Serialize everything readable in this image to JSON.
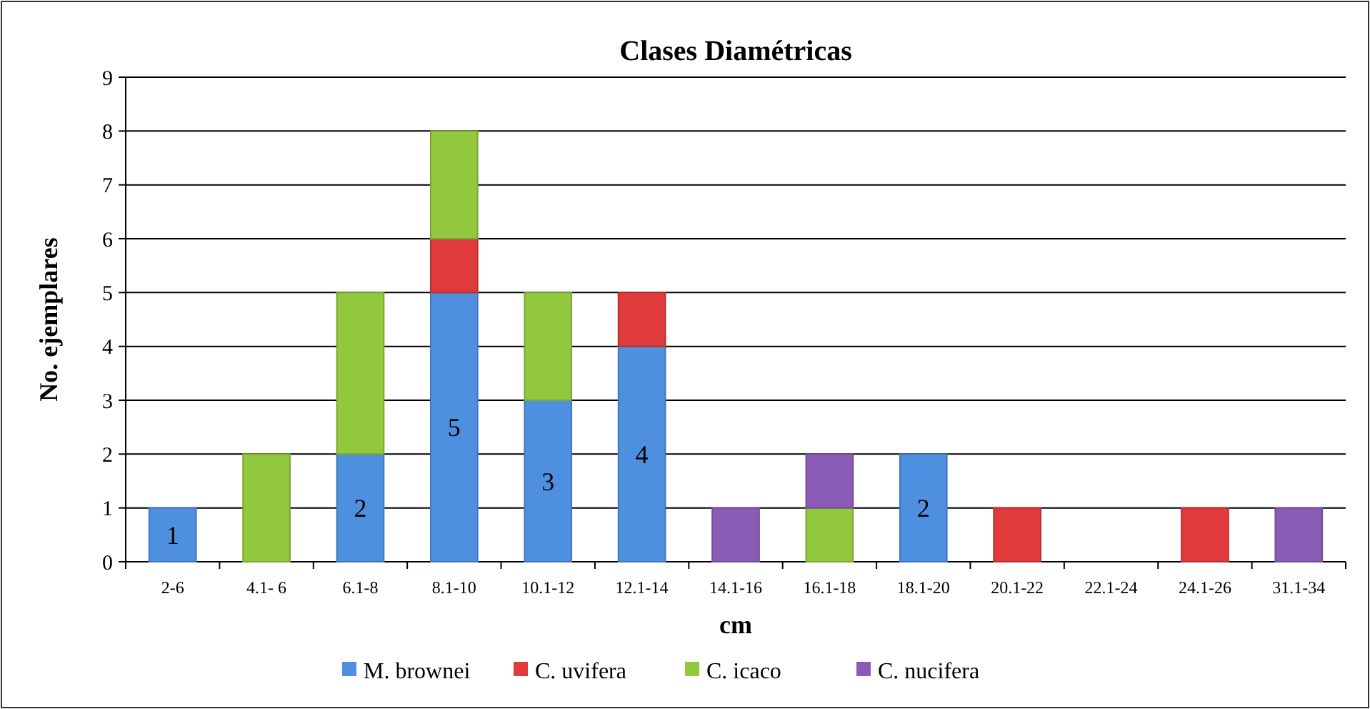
{
  "chart_data": {
    "type": "bar",
    "title": "Clases Diamétricas",
    "xlabel": "cm",
    "ylabel": "No. ejemplares",
    "categories": [
      "2-6",
      "4.1- 6",
      "6.1-8",
      "8.1-10",
      "10.1-12",
      "12.1-14",
      "14.1-16",
      "16.1-18",
      "18.1-20",
      "20.1-22",
      "22.1-24",
      "24.1-26",
      "31.1-34"
    ],
    "stacked": true,
    "grid": "y",
    "legend": "bottom",
    "ylim": [
      0,
      9
    ],
    "yticks": [
      0,
      1,
      2,
      3,
      4,
      5,
      6,
      7,
      8,
      9
    ],
    "series": [
      {
        "name": "M. brownei",
        "color": "#4f8fe0",
        "values": [
          1,
          0,
          2,
          5,
          3,
          4,
          0,
          0,
          2,
          0,
          0,
          0,
          0
        ],
        "value_labels": [
          "1",
          null,
          "2",
          "5",
          "3",
          "4",
          null,
          null,
          "2",
          null,
          null,
          null,
          null
        ]
      },
      {
        "name": "C. uvifera",
        "color": "#e03a3a",
        "values": [
          0,
          0,
          0,
          1,
          0,
          1,
          0,
          0,
          0,
          1,
          0,
          1,
          0
        ]
      },
      {
        "name": "C. icaco",
        "color": "#92c83e",
        "values": [
          0,
          2,
          3,
          2,
          2,
          0,
          0,
          1,
          0,
          0,
          0,
          0,
          0
        ]
      },
      {
        "name": "C. nucifera",
        "color": "#8a5cb8",
        "values": [
          0,
          0,
          0,
          0,
          0,
          0,
          1,
          1,
          0,
          0,
          0,
          0,
          1
        ]
      }
    ]
  }
}
